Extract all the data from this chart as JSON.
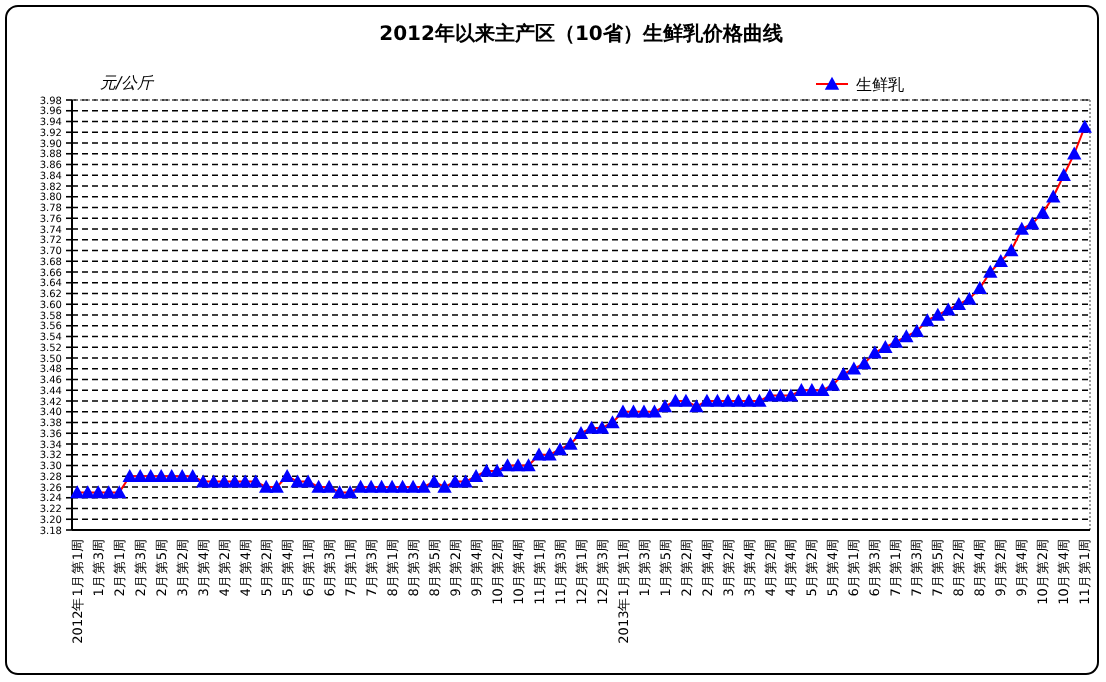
{
  "chart_data": {
    "type": "line",
    "title": "2012年以来主产区（10省）生鲜乳价格曲线",
    "ylabel": "元/公斤",
    "categories": [
      "2012年1月第1周",
      null,
      "1月第3周",
      null,
      "2月第1周",
      null,
      "2月第3周",
      null,
      "2月第5周",
      null,
      "3月第2周",
      null,
      "3月第4周",
      null,
      "4月第2周",
      null,
      "4月第4周",
      null,
      "5月第2周",
      null,
      "5月第4周",
      null,
      "6月第1周",
      null,
      "6月第3周",
      null,
      "7月第1周",
      null,
      "7月第3周",
      null,
      "8月第1周",
      null,
      "8月第3周",
      null,
      "8月第5周",
      null,
      "9月第2周",
      null,
      "9月第4周",
      null,
      "10月第2周",
      null,
      "10月第4周",
      null,
      "11月第1周",
      null,
      "11月第3周",
      null,
      "12月第1周",
      null,
      "12月第3周",
      null,
      "2013年1月第1周",
      null,
      "1月第3周",
      null,
      "1月第5周",
      null,
      "2月第2周",
      null,
      "2月第4周",
      null,
      "3月第2周",
      null,
      "3月第4周",
      null,
      "4月第2周",
      null,
      "4月第4周",
      null,
      "5月第2周",
      null,
      "5月第4周",
      null,
      "6月第1周",
      null,
      "6月第3周",
      null,
      "7月第1周",
      null,
      "7月第3周",
      null,
      "7月第5周",
      null,
      "8月第2周",
      null,
      "8月第4周",
      null,
      "9月第2周",
      null,
      "9月第4周",
      null,
      "10月第2周",
      null,
      "10月第4周",
      null,
      "11月第1周"
    ],
    "series": [
      {
        "name": "生鲜乳",
        "color": "#0000ff",
        "values": [
          3.25,
          3.25,
          3.25,
          3.25,
          3.25,
          3.28,
          3.28,
          3.28,
          3.28,
          3.28,
          3.28,
          3.28,
          3.27,
          3.27,
          3.27,
          3.27,
          3.27,
          3.27,
          3.26,
          3.26,
          3.28,
          3.27,
          3.27,
          3.26,
          3.26,
          3.25,
          3.25,
          3.26,
          3.26,
          3.26,
          3.26,
          3.26,
          3.26,
          3.26,
          3.27,
          3.26,
          3.27,
          3.27,
          3.28,
          3.29,
          3.29,
          3.3,
          3.3,
          3.3,
          3.32,
          3.32,
          3.33,
          3.34,
          3.36,
          3.37,
          3.37,
          3.38,
          3.4,
          3.4,
          3.4,
          3.4,
          3.41,
          3.42,
          3.42,
          3.41,
          3.42,
          3.42,
          3.42,
          3.42,
          3.42,
          3.42,
          3.43,
          3.43,
          3.43,
          3.44,
          3.44,
          3.44,
          3.45,
          3.47,
          3.48,
          3.49,
          3.51,
          3.52,
          3.53,
          3.54,
          3.55,
          3.57,
          3.58,
          3.59,
          3.6,
          3.61,
          3.63,
          3.66,
          3.68,
          3.7,
          3.74,
          3.75,
          3.77,
          3.8,
          3.84,
          3.88,
          3.93
        ]
      }
    ],
    "ylim": [
      3.18,
      3.98
    ],
    "yticks": [
      3.18,
      {
        "value": 3.2,
        "label": "3.20"
      },
      3.22,
      3.24,
      3.26,
      3.28,
      {
        "value": 3.3,
        "label": "3.30"
      },
      3.32,
      3.34,
      3.36,
      3.38,
      {
        "value": 3.4,
        "label": "3.40"
      },
      3.42,
      3.44,
      3.46,
      3.48,
      {
        "value": 3.5,
        "label": "3.50"
      },
      3.52,
      3.54,
      3.56,
      3.58,
      {
        "value": 3.6,
        "label": "3.60"
      },
      3.62,
      3.64,
      3.66,
      3.68,
      {
        "value": 3.7,
        "label": "3.70"
      },
      3.72,
      3.74,
      3.76,
      3.78,
      {
        "value": 3.8,
        "label": "3.80"
      },
      3.82,
      3.84,
      3.86,
      3.88,
      {
        "value": 3.9,
        "label": "3.90"
      },
      3.92,
      3.94,
      3.96,
      3.98
    ],
    "grid": "y",
    "legend": "top right",
    "marker": "triangle",
    "line_style": "solid"
  }
}
